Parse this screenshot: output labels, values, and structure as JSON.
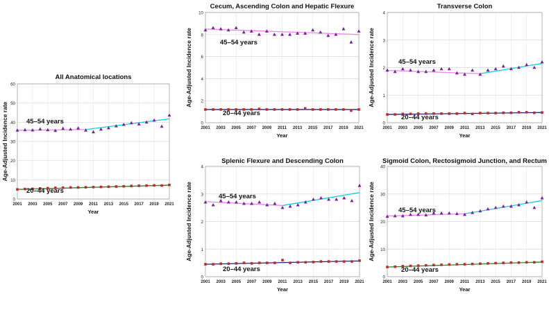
{
  "chart_data": [
    {
      "type": "scatter",
      "title": "All Anatomical locations",
      "xlabel": "Year",
      "ylabel": "Age-Adjusted Incidence rate",
      "xlim": [
        2001,
        2021
      ],
      "ylim": [
        0,
        60
      ],
      "yticks": [
        "0",
        "10",
        "20",
        "30",
        "40",
        "50",
        "60"
      ],
      "xticks": [
        "2001",
        "2003",
        "2005",
        "2007",
        "2009",
        "2011",
        "2013",
        "2015",
        "2017",
        "2019",
        "2021"
      ],
      "x": [
        2001,
        2002,
        2003,
        2004,
        2005,
        2006,
        2007,
        2008,
        2009,
        2010,
        2011,
        2012,
        2013,
        2014,
        2015,
        2016,
        2017,
        2018,
        2019,
        2020,
        2021
      ],
      "series": [
        {
          "name": "45–54 years",
          "label": "45–54 years",
          "marker": "triangle",
          "color": "#7b1fa2",
          "values": [
            35.8,
            36.0,
            35.9,
            36.4,
            36.0,
            35.6,
            36.7,
            36.3,
            36.9,
            35.8,
            34.9,
            36.3,
            37.0,
            38.0,
            38.8,
            39.6,
            39.0,
            40.0,
            41.0,
            37.8,
            43.6
          ],
          "fits": [
            {
              "x": [
                2001,
                2010
              ],
              "y": [
                35.8,
                36.2
              ],
              "color": "#ee82ee"
            },
            {
              "x": [
                2010,
                2021
              ],
              "y": [
                36.2,
                41.8
              ],
              "color": "#00d4e0"
            }
          ]
        },
        {
          "name": "20–44 years",
          "label": "20–44 years",
          "marker": "square",
          "color": "#c62828",
          "values": [
            5.0,
            5.2,
            5.3,
            5.5,
            5.6,
            5.8,
            5.9,
            6.0,
            6.0,
            6.1,
            6.2,
            6.3,
            6.4,
            6.5,
            6.6,
            6.8,
            6.9,
            7.0,
            7.1,
            7.0,
            7.3
          ],
          "fits": [
            {
              "x": [
                2001,
                2021
              ],
              "y": [
                5.0,
                7.2
              ],
              "color": "#2e7d32"
            }
          ]
        }
      ]
    },
    {
      "type": "scatter",
      "title": "Cecum, Ascending Colon and Hepatic Flexure",
      "xlabel": "Year",
      "ylabel": "Age-Adjusted Incidence rate",
      "xlim": [
        2001,
        2021
      ],
      "ylim": [
        0,
        10
      ],
      "yticks": [
        "0",
        "2",
        "4",
        "6",
        "8",
        "10"
      ],
      "xticks": [
        "2001",
        "2003",
        "2005",
        "2007",
        "2009",
        "2011",
        "2013",
        "2015",
        "2017",
        "2019",
        "2021"
      ],
      "x": [
        2001,
        2002,
        2003,
        2004,
        2005,
        2006,
        2007,
        2008,
        2009,
        2010,
        2011,
        2012,
        2013,
        2014,
        2015,
        2016,
        2017,
        2018,
        2019,
        2020,
        2021
      ],
      "series": [
        {
          "name": "45–54 years",
          "label": "45–54 years",
          "marker": "triangle",
          "color": "#7b1fa2",
          "values": [
            8.4,
            8.6,
            8.5,
            8.4,
            8.6,
            8.2,
            8.3,
            8.0,
            8.3,
            8.0,
            8.0,
            8.0,
            8.1,
            8.1,
            8.4,
            8.2,
            7.9,
            8.0,
            8.5,
            7.3,
            8.3
          ],
          "fits": [
            {
              "x": [
                2001,
                2021
              ],
              "y": [
                8.5,
                8.0
              ],
              "color": "#ee82ee"
            }
          ]
        },
        {
          "name": "20–44 years",
          "label": "20–44 years",
          "marker": "square",
          "color": "#c62828",
          "values": [
            1.2,
            1.2,
            1.2,
            1.2,
            1.2,
            1.2,
            1.2,
            1.25,
            1.2,
            1.2,
            1.2,
            1.2,
            1.2,
            1.3,
            1.2,
            1.2,
            1.2,
            1.2,
            1.2,
            1.1,
            1.2
          ],
          "fits": [
            {
              "x": [
                2001,
                2021
              ],
              "y": [
                1.2,
                1.2
              ],
              "color": "#1a237e"
            }
          ]
        }
      ]
    },
    {
      "type": "scatter",
      "title": "Transverse Colon",
      "xlabel": "Year",
      "ylabel": "Age-Adjusted Incidence rate",
      "xlim": [
        2001,
        2021
      ],
      "ylim": [
        0,
        4
      ],
      "yticks": [
        "0",
        "1",
        "2",
        "3",
        "4"
      ],
      "xticks": [
        "2001",
        "2003",
        "2005",
        "2007",
        "2009",
        "2011",
        "2013",
        "2015",
        "2017",
        "2019",
        "2021"
      ],
      "x": [
        2001,
        2002,
        2003,
        2004,
        2005,
        2006,
        2007,
        2008,
        2009,
        2010,
        2011,
        2012,
        2013,
        2014,
        2015,
        2016,
        2017,
        2018,
        2019,
        2020,
        2021
      ],
      "series": [
        {
          "name": "45–54 years",
          "label": "45–54 years",
          "marker": "triangle",
          "color": "#7b1fa2",
          "values": [
            1.9,
            1.85,
            1.95,
            1.9,
            1.85,
            1.85,
            1.9,
            1.95,
            1.95,
            1.8,
            1.75,
            1.9,
            1.75,
            1.9,
            1.95,
            2.05,
            1.95,
            2.0,
            2.1,
            2.0,
            2.2
          ],
          "fits": [
            {
              "x": [
                2001,
                2013
              ],
              "y": [
                1.9,
                1.78
              ],
              "color": "#ee82ee"
            },
            {
              "x": [
                2013,
                2021
              ],
              "y": [
                1.78,
                2.15
              ],
              "color": "#00d4e0"
            }
          ]
        },
        {
          "name": "20–44 years",
          "label": "20–44 years",
          "marker": "square",
          "color": "#c62828",
          "values": [
            0.3,
            0.3,
            0.32,
            0.32,
            0.33,
            0.33,
            0.33,
            0.33,
            0.33,
            0.33,
            0.35,
            0.32,
            0.35,
            0.35,
            0.35,
            0.36,
            0.36,
            0.38,
            0.38,
            0.36,
            0.37
          ],
          "fits": [
            {
              "x": [
                2001,
                2021
              ],
              "y": [
                0.3,
                0.37
              ],
              "color": "#1a237e"
            }
          ]
        }
      ]
    },
    {
      "type": "scatter",
      "title": "Splenic Flexure and Descending Colon",
      "xlabel": "Year",
      "ylabel": "Age-Adjusted Incidence rate",
      "xlim": [
        2001,
        2021
      ],
      "ylim": [
        0,
        4
      ],
      "yticks": [
        "0",
        "1",
        "2",
        "3",
        "4"
      ],
      "xticks": [
        "2001",
        "2003",
        "2005",
        "2007",
        "2009",
        "2011",
        "2013",
        "2015",
        "2017",
        "2019",
        "2021"
      ],
      "x": [
        2001,
        2002,
        2003,
        2004,
        2005,
        2006,
        2007,
        2008,
        2009,
        2010,
        2011,
        2012,
        2013,
        2014,
        2015,
        2016,
        2017,
        2018,
        2019,
        2020,
        2021
      ],
      "series": [
        {
          "name": "45–54 years",
          "label": "45–54 years",
          "marker": "triangle",
          "color": "#7b1fa2",
          "values": [
            2.7,
            2.6,
            2.75,
            2.7,
            2.7,
            2.65,
            2.65,
            2.7,
            2.6,
            2.65,
            2.5,
            2.55,
            2.6,
            2.7,
            2.8,
            2.85,
            2.8,
            2.8,
            2.85,
            2.75,
            3.3
          ],
          "fits": [
            {
              "x": [
                2001,
                2011
              ],
              "y": [
                2.72,
                2.58
              ],
              "color": "#ee82ee"
            },
            {
              "x": [
                2011,
                2021
              ],
              "y": [
                2.58,
                3.05
              ],
              "color": "#00d4e0"
            }
          ]
        },
        {
          "name": "20–44 years",
          "label": "20–44 years",
          "marker": "square",
          "color": "#c62828",
          "values": [
            0.45,
            0.45,
            0.47,
            0.47,
            0.48,
            0.5,
            0.48,
            0.5,
            0.5,
            0.5,
            0.6,
            0.5,
            0.52,
            0.52,
            0.53,
            0.55,
            0.55,
            0.55,
            0.55,
            0.55,
            0.58
          ],
          "fits": [
            {
              "x": [
                2001,
                2021
              ],
              "y": [
                0.45,
                0.57
              ],
              "color": "#1a237e"
            }
          ]
        }
      ]
    },
    {
      "type": "scatter",
      "title": "Sigmoid Colon, Rectosigmoid Junction, and Rectum",
      "xlabel": "Year",
      "ylabel": "Age-Adjusted Incidence rate",
      "xlim": [
        2001,
        2021
      ],
      "ylim": [
        0,
        40
      ],
      "yticks": [
        "0",
        "10",
        "20",
        "30",
        "40"
      ],
      "xticks": [
        "2001",
        "2003",
        "2005",
        "2007",
        "2009",
        "2011",
        "2013",
        "2015",
        "2017",
        "2019",
        "2021"
      ],
      "x": [
        2001,
        2002,
        2003,
        2004,
        2005,
        2006,
        2007,
        2008,
        2009,
        2010,
        2011,
        2012,
        2013,
        2014,
        2015,
        2016,
        2017,
        2018,
        2019,
        2020,
        2021
      ],
      "series": [
        {
          "name": "45–54 years",
          "label": "45–54 years",
          "marker": "triangle",
          "color": "#7b1fa2",
          "values": [
            21.8,
            22.0,
            22.0,
            22.5,
            22.5,
            22.3,
            23.0,
            23.0,
            23.0,
            22.8,
            22.5,
            23.2,
            23.8,
            24.5,
            25.0,
            25.5,
            25.5,
            26.0,
            27.0,
            25.0,
            28.5
          ],
          "fits": [
            {
              "x": [
                2001,
                2011
              ],
              "y": [
                22.0,
                22.8
              ],
              "color": "#ee82ee"
            },
            {
              "x": [
                2011,
                2021
              ],
              "y": [
                22.8,
                27.6
              ],
              "color": "#00d4e0"
            }
          ]
        },
        {
          "name": "20–44 years",
          "label": "20–44 years",
          "marker": "square",
          "color": "#c62828",
          "values": [
            3.5,
            3.6,
            3.8,
            3.9,
            4.0,
            4.1,
            4.2,
            4.3,
            4.4,
            4.5,
            4.5,
            4.6,
            4.7,
            4.8,
            4.9,
            5.0,
            5.1,
            5.1,
            5.2,
            5.2,
            5.4
          ],
          "fits": [
            {
              "x": [
                2001,
                2021
              ],
              "y": [
                3.5,
                5.3
              ],
              "color": "#2e7d32"
            }
          ]
        }
      ]
    }
  ]
}
